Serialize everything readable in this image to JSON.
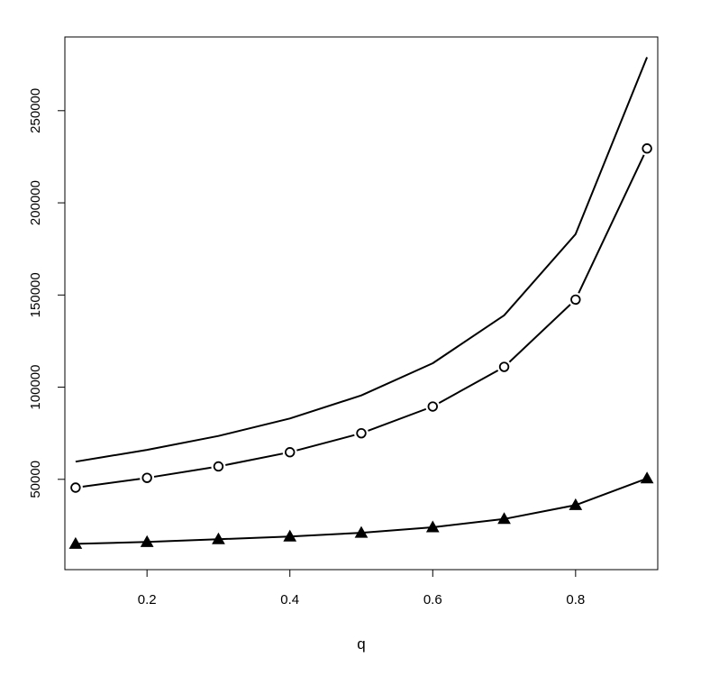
{
  "chart_data": {
    "type": "line",
    "title": "",
    "xlabel": "q",
    "ylabel": "",
    "xlim": [
      0.085,
      0.915
    ],
    "ylim": [
      1000,
      290000
    ],
    "grid": false,
    "legend": "none",
    "x_ticks": [
      0.2,
      0.4,
      0.6,
      0.8
    ],
    "x_tick_labels": [
      "0.2",
      "0.4",
      "0.6",
      "0.8"
    ],
    "y_ticks": [
      50000,
      100000,
      150000,
      200000,
      250000
    ],
    "y_tick_labels": [
      "50000",
      "100000",
      "150000",
      "200000",
      "250000"
    ],
    "x": [
      0.1,
      0.2,
      0.3,
      0.4,
      0.5,
      0.6,
      0.7,
      0.8,
      0.9
    ],
    "series": [
      {
        "marker": "none",
        "values": [
          59600,
          66000,
          73500,
          83000,
          95500,
          113000,
          139000,
          183000,
          279000
        ]
      },
      {
        "marker": "circle",
        "values": [
          45500,
          50800,
          57000,
          64700,
          75000,
          89500,
          111000,
          147500,
          229500
        ]
      },
      {
        "marker": "triangle",
        "values": [
          15000,
          16000,
          17500,
          19000,
          21000,
          24000,
          28500,
          36000,
          50500
        ]
      }
    ],
    "style": {
      "line_color": "#000000",
      "axis_color": "#000000",
      "marker_fill_triangle": "#000000",
      "marker_fill_circle": "#ffffff"
    }
  }
}
